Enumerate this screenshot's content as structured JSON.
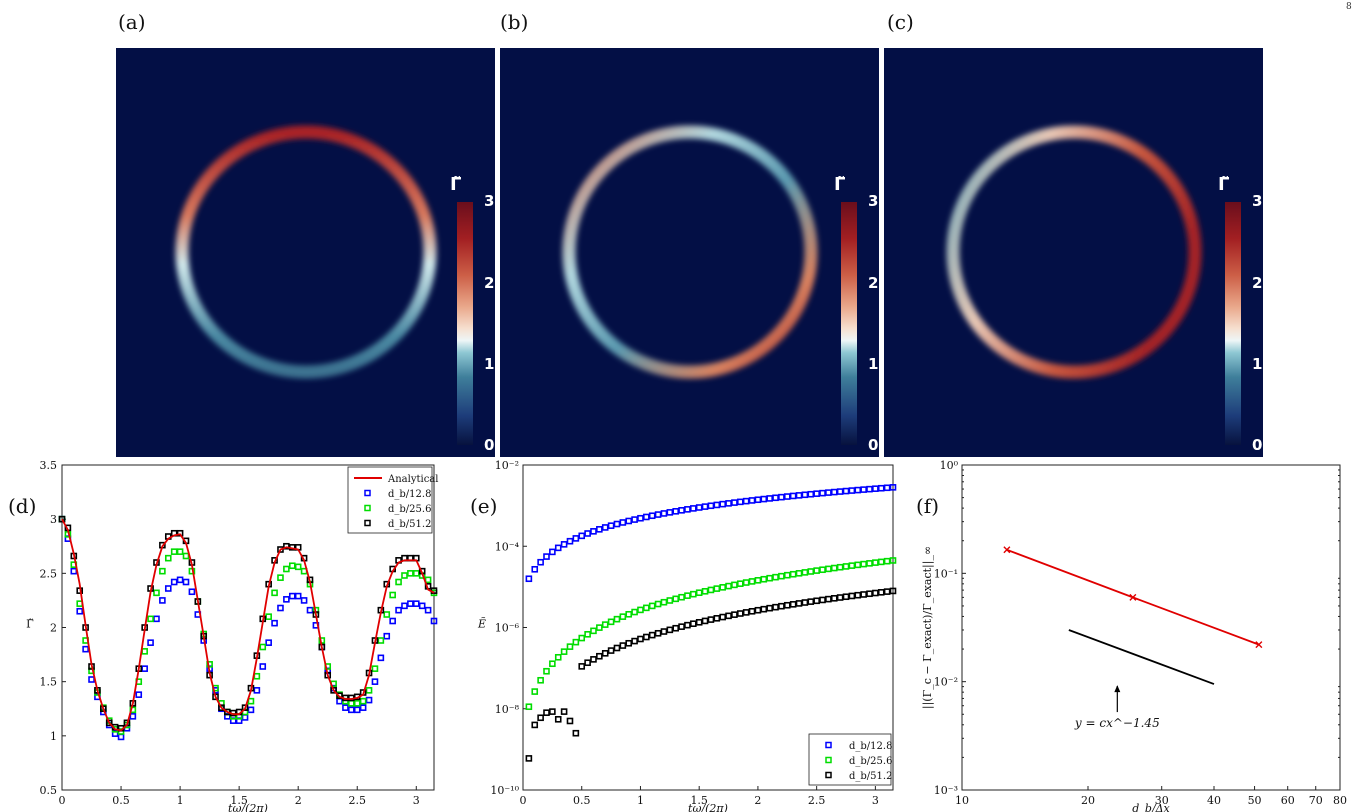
{
  "page": {
    "corner_mark": "8"
  },
  "panels": [
    {
      "label": "(a)",
      "colorbar_symbol": "Γ̃",
      "colorbar_ticks": [
        "3",
        "2",
        "1",
        "0"
      ]
    },
    {
      "label": "(b)",
      "colorbar_symbol": "Γ̃",
      "colorbar_ticks": [
        "3",
        "2",
        "1",
        "0"
      ]
    },
    {
      "label": "(c)",
      "colorbar_symbol": "Γ̃",
      "colorbar_ticks": [
        "3",
        "2",
        "1",
        "0"
      ]
    },
    {
      "label": "(d)"
    },
    {
      "label": "(e)"
    },
    {
      "label": "(f)"
    }
  ],
  "colors": {
    "analytical": "#e00000",
    "s1": "#0000ff",
    "s2": "#00dd00",
    "s3": "#000000",
    "field_bg": "#030f45"
  },
  "chart_data": [
    {
      "type": "line",
      "panel": "(d)",
      "xlabel": "tω/(2π)",
      "ylabel": "Γ̃",
      "xlim": [
        0,
        3.15
      ],
      "ylim": [
        0.5,
        3.5
      ],
      "xticks": [
        "0",
        "0.5",
        "1",
        "1.5",
        "2",
        "2.5",
        "3"
      ],
      "yticks": [
        "0.5",
        "1",
        "1.5",
        "2",
        "2.5",
        "3",
        "3.5"
      ],
      "legend": [
        "Analytical",
        "d_b/12.8",
        "d_b/25.6",
        "d_b/51.2"
      ],
      "legend_position": "top-right",
      "series": [
        {
          "name": "Analytical",
          "style": "line",
          "x": [
            0,
            0.05,
            0.1,
            0.15,
            0.2,
            0.25,
            0.3,
            0.35,
            0.4,
            0.45,
            0.5,
            0.55,
            0.6,
            0.65,
            0.7,
            0.75,
            0.8,
            0.85,
            0.9,
            0.95,
            1,
            1.05,
            1.1,
            1.15,
            1.2,
            1.25,
            1.3,
            1.35,
            1.4,
            1.45,
            1.5,
            1.55,
            1.6,
            1.65,
            1.7,
            1.75,
            1.8,
            1.85,
            1.9,
            1.95,
            2,
            2.05,
            2.1,
            2.15,
            2.2,
            2.25,
            2.3,
            2.35,
            2.4,
            2.45,
            2.5,
            2.55,
            2.6,
            2.65,
            2.7,
            2.75,
            2.8,
            2.85,
            2.9,
            2.95,
            3,
            3.05,
            3.1,
            3.15
          ],
          "y": [
            3.0,
            2.9,
            2.68,
            2.4,
            2.02,
            1.66,
            1.42,
            1.25,
            1.12,
            1.06,
            1.05,
            1.1,
            1.3,
            1.62,
            1.98,
            2.33,
            2.58,
            2.75,
            2.82,
            2.85,
            2.86,
            2.78,
            2.58,
            2.25,
            1.92,
            1.58,
            1.36,
            1.26,
            1.22,
            1.2,
            1.2,
            1.25,
            1.42,
            1.72,
            2.05,
            2.38,
            2.6,
            2.72,
            2.74,
            2.73,
            2.72,
            2.62,
            2.42,
            2.12,
            1.82,
            1.56,
            1.42,
            1.36,
            1.34,
            1.34,
            1.35,
            1.38,
            1.56,
            1.86,
            2.14,
            2.38,
            2.52,
            2.6,
            2.62,
            2.62,
            2.62,
            2.5,
            2.35,
            2.32
          ]
        },
        {
          "name": "d_b/12.8",
          "style": "markers",
          "x": [
            0,
            0.05,
            0.1,
            0.15,
            0.2,
            0.25,
            0.3,
            0.35,
            0.4,
            0.45,
            0.5,
            0.55,
            0.6,
            0.65,
            0.7,
            0.75,
            0.8,
            0.85,
            0.9,
            0.95,
            1,
            1.05,
            1.1,
            1.15,
            1.2,
            1.25,
            1.3,
            1.35,
            1.4,
            1.45,
            1.5,
            1.55,
            1.6,
            1.65,
            1.7,
            1.75,
            1.8,
            1.85,
            1.9,
            1.95,
            2,
            2.05,
            2.1,
            2.15,
            2.2,
            2.25,
            2.3,
            2.35,
            2.4,
            2.45,
            2.5,
            2.55,
            2.6,
            2.65,
            2.7,
            2.75,
            2.8,
            2.85,
            2.9,
            2.95,
            3,
            3.05,
            3.1,
            3.15
          ],
          "y": [
            3.0,
            2.82,
            2.52,
            2.15,
            1.8,
            1.52,
            1.36,
            1.22,
            1.1,
            1.02,
            0.99,
            1.07,
            1.18,
            1.38,
            1.62,
            1.86,
            2.08,
            2.25,
            2.36,
            2.42,
            2.44,
            2.42,
            2.33,
            2.12,
            1.88,
            1.62,
            1.42,
            1.25,
            1.18,
            1.14,
            1.14,
            1.17,
            1.24,
            1.42,
            1.64,
            1.86,
            2.04,
            2.18,
            2.26,
            2.29,
            2.29,
            2.25,
            2.16,
            2.02,
            1.82,
            1.6,
            1.44,
            1.32,
            1.26,
            1.24,
            1.24,
            1.26,
            1.33,
            1.5,
            1.72,
            1.92,
            2.06,
            2.16,
            2.2,
            2.22,
            2.22,
            2.2,
            2.16,
            2.06
          ]
        },
        {
          "name": "d_b/25.6",
          "style": "markers",
          "x": [
            0,
            0.05,
            0.1,
            0.15,
            0.2,
            0.25,
            0.3,
            0.35,
            0.4,
            0.45,
            0.5,
            0.55,
            0.6,
            0.65,
            0.7,
            0.75,
            0.8,
            0.85,
            0.9,
            0.95,
            1,
            1.05,
            1.1,
            1.15,
            1.2,
            1.25,
            1.3,
            1.35,
            1.4,
            1.45,
            1.5,
            1.55,
            1.6,
            1.65,
            1.7,
            1.75,
            1.8,
            1.85,
            1.9,
            1.95,
            2,
            2.05,
            2.1,
            2.15,
            2.2,
            2.25,
            2.3,
            2.35,
            2.4,
            2.45,
            2.5,
            2.55,
            2.6,
            2.65,
            2.7,
            2.75,
            2.8,
            2.85,
            2.9,
            2.95,
            3,
            3.05,
            3.1,
            3.15
          ],
          "y": [
            3.0,
            2.86,
            2.58,
            2.22,
            1.88,
            1.6,
            1.4,
            1.26,
            1.14,
            1.06,
            1.04,
            1.1,
            1.24,
            1.5,
            1.78,
            2.08,
            2.32,
            2.52,
            2.64,
            2.7,
            2.7,
            2.66,
            2.52,
            2.24,
            1.94,
            1.66,
            1.44,
            1.3,
            1.22,
            1.18,
            1.18,
            1.22,
            1.32,
            1.55,
            1.82,
            2.1,
            2.32,
            2.46,
            2.54,
            2.57,
            2.56,
            2.52,
            2.4,
            2.16,
            1.88,
            1.64,
            1.48,
            1.38,
            1.32,
            1.3,
            1.3,
            1.32,
            1.42,
            1.62,
            1.88,
            2.12,
            2.3,
            2.42,
            2.48,
            2.5,
            2.5,
            2.48,
            2.44,
            2.32
          ]
        },
        {
          "name": "d_b/51.2",
          "style": "markers",
          "x": [
            0,
            0.05,
            0.1,
            0.15,
            0.2,
            0.25,
            0.3,
            0.35,
            0.4,
            0.45,
            0.5,
            0.55,
            0.6,
            0.65,
            0.7,
            0.75,
            0.8,
            0.85,
            0.9,
            0.95,
            1,
            1.05,
            1.1,
            1.15,
            1.2,
            1.25,
            1.3,
            1.35,
            1.4,
            1.45,
            1.5,
            1.55,
            1.6,
            1.65,
            1.7,
            1.75,
            1.8,
            1.85,
            1.9,
            1.95,
            2,
            2.05,
            2.1,
            2.15,
            2.2,
            2.25,
            2.3,
            2.35,
            2.4,
            2.45,
            2.5,
            2.55,
            2.6,
            2.65,
            2.7,
            2.75,
            2.8,
            2.85,
            2.9,
            2.95,
            3,
            3.05,
            3.1,
            3.15
          ],
          "y": [
            3.0,
            2.92,
            2.66,
            2.34,
            2.0,
            1.64,
            1.42,
            1.25,
            1.12,
            1.08,
            1.07,
            1.12,
            1.3,
            1.62,
            2.0,
            2.36,
            2.6,
            2.76,
            2.84,
            2.87,
            2.87,
            2.8,
            2.6,
            2.24,
            1.92,
            1.56,
            1.36,
            1.26,
            1.22,
            1.21,
            1.22,
            1.26,
            1.44,
            1.74,
            2.08,
            2.4,
            2.62,
            2.72,
            2.75,
            2.74,
            2.74,
            2.64,
            2.44,
            2.12,
            1.82,
            1.56,
            1.42,
            1.37,
            1.35,
            1.35,
            1.36,
            1.4,
            1.58,
            1.88,
            2.16,
            2.4,
            2.54,
            2.62,
            2.64,
            2.64,
            2.64,
            2.52,
            2.38,
            2.34
          ]
        }
      ]
    },
    {
      "type": "scatter",
      "panel": "(e)",
      "xlabel": "tω/(2π)",
      "ylabel": "Ẽ",
      "yscale": "log",
      "xlim": [
        0,
        3.15
      ],
      "ylim": [
        1e-10,
        0.01
      ],
      "xticks": [
        "0",
        "0.5",
        "1",
        "1.5",
        "2",
        "2.5",
        "3"
      ],
      "yticks": [
        "10⁻¹⁰",
        "10⁻⁸",
        "10⁻⁶",
        "10⁻⁴",
        "10⁻²"
      ],
      "legend": [
        "d_b/12.8",
        "d_b/25.6",
        "d_b/51.2"
      ],
      "legend_position": "bottom-right",
      "series": [
        {
          "name": "d_b/12.8",
          "exp_start": -4.8,
          "exp_end": -2.55,
          "x0": 0.05
        },
        {
          "name": "d_b/25.6",
          "exp_start": -7.95,
          "exp_end": -4.35,
          "x0": 0.05
        },
        {
          "name": "d_b/51.2",
          "exp_start": -9.2,
          "exp_end": -5.1,
          "x0": 0.05,
          "x": [
            0.05,
            0.1,
            0.15,
            0.2,
            0.25,
            0.3,
            0.35,
            0.4,
            0.45
          ],
          "y": [
            6e-10,
            4e-09,
            6e-09,
            8e-09,
            8.5e-09,
            5.5e-09,
            8.5e-09,
            5e-09,
            2.5e-09
          ]
        }
      ]
    },
    {
      "type": "line",
      "panel": "(f)",
      "xlabel": "d_b/Δx",
      "ylabel": "||(Γ_c − Γ_exact)/Γ_exact||_∞",
      "xscale": "log",
      "yscale": "log",
      "xlim": [
        10,
        80
      ],
      "ylim": [
        0.001,
        1
      ],
      "xticks": [
        "10",
        "20",
        "30",
        "40",
        "50",
        "60",
        "70",
        "80"
      ],
      "yticks": [
        "10⁻³",
        "10⁻²",
        "10⁻¹",
        "10⁰"
      ],
      "annotation": "y = cx^−1.45",
      "series": [
        {
          "name": "error",
          "x": [
            12.8,
            25.6,
            51.2
          ],
          "y": [
            0.165,
            0.06,
            0.022
          ]
        },
        {
          "name": "reference",
          "x": [
            18,
            40
          ],
          "y": [
            0.03,
            0.0095
          ]
        }
      ]
    }
  ]
}
